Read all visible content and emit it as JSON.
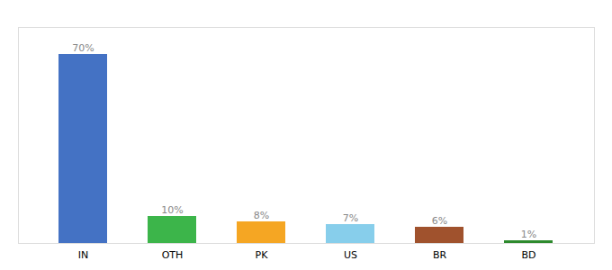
{
  "chart_data": {
    "type": "bar",
    "categories": [
      "IN",
      "OTH",
      "PK",
      "US",
      "BR",
      "BD"
    ],
    "values": [
      70,
      10,
      8,
      7,
      6,
      1
    ],
    "value_labels": [
      "70%",
      "10%",
      "8%",
      "7%",
      "6%",
      "1%"
    ],
    "colors": [
      "#4472c4",
      "#3cb54a",
      "#f5a623",
      "#87ceeb",
      "#a0522d",
      "#2d8a2d"
    ],
    "ylim": [
      0,
      80
    ],
    "data_labels": true,
    "tick_labels": "x",
    "grid": false
  }
}
